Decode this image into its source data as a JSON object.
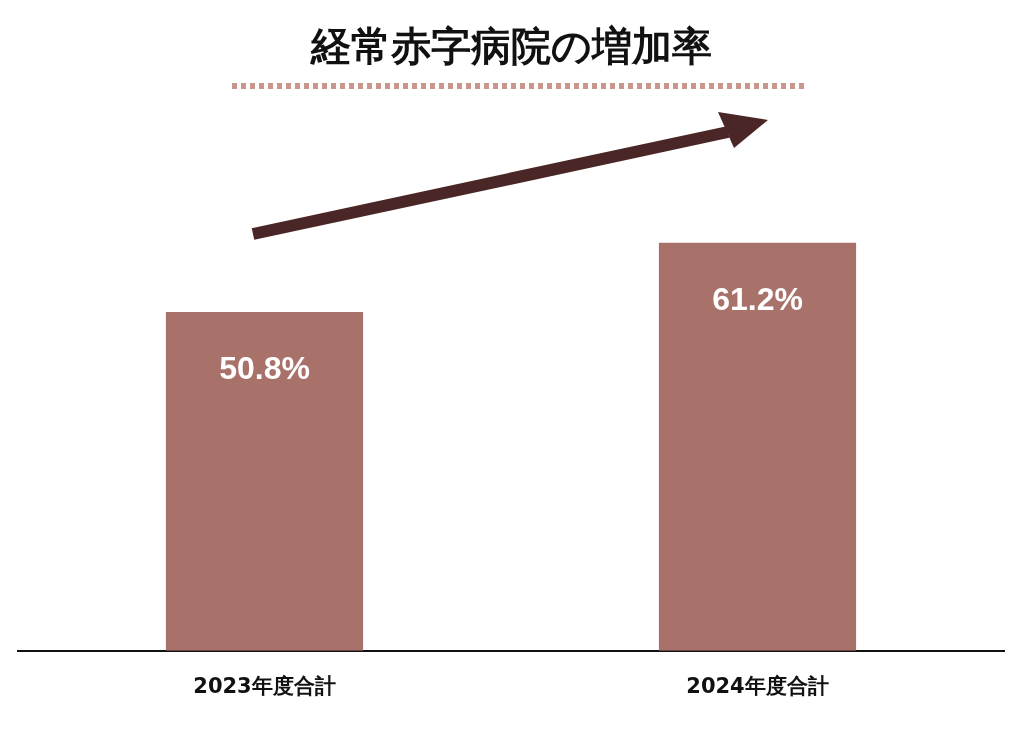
{
  "chart_data": {
    "type": "bar",
    "title": "経常赤字病院の増加率",
    "categories": [
      "2023年度合計",
      "2024年度合計"
    ],
    "values": [
      50.8,
      61.2
    ],
    "color": "#a8716a",
    "value_labels": [
      "50.8%",
      "61.2%"
    ],
    "grid": false,
    "legend": false
  }
}
